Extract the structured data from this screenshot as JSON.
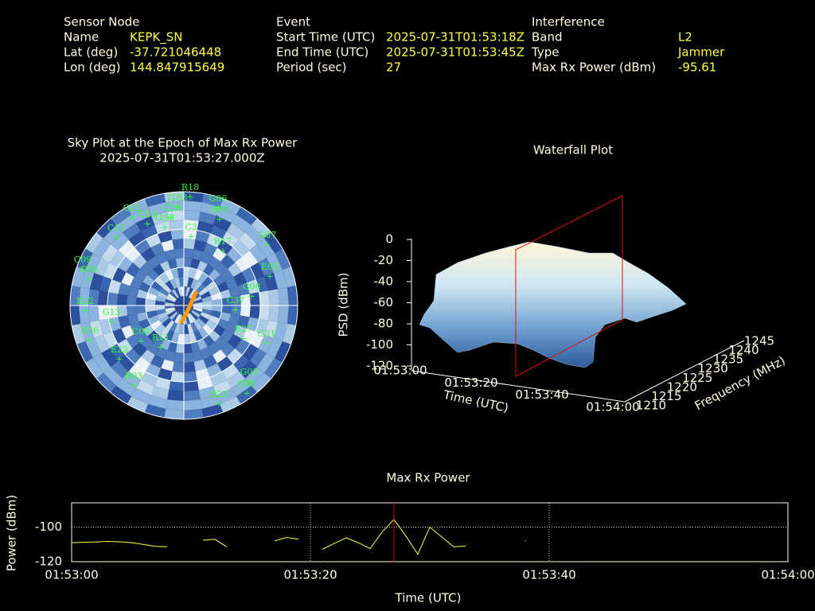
{
  "header": {
    "columns": [
      {
        "title": "Sensor Node",
        "rows": [
          {
            "label": "Name",
            "value": "KEPK_SN"
          },
          {
            "label": "Lat (deg)",
            "value": -37.721046448
          },
          {
            "label": "Lon (deg)",
            "value": 144.847915649
          }
        ]
      },
      {
        "title": "Event",
        "rows": [
          {
            "label": "Start Time (UTC)",
            "value": "2025-07-31T01:53:18Z"
          },
          {
            "label": "End Time (UTC)",
            "value": "2025-07-31T01:53:45Z"
          },
          {
            "label": "Period (sec)",
            "value": 27
          }
        ]
      },
      {
        "title": "Interference",
        "rows": [
          {
            "label": "Band",
            "value": "L2"
          },
          {
            "label": "Type",
            "value": "Jammer"
          },
          {
            "label": "Max Rx Power (dBm)",
            "value": -95.61
          }
        ]
      }
    ]
  },
  "sky_plot": {
    "title": "Sky Plot at the Epoch of Max Rx Power",
    "epoch": "2025-07-31T01:53:27.000Z",
    "satellites": [
      "R18",
      "I103",
      "G06",
      "G12",
      "C29",
      "H05",
      "C23",
      "I198",
      "G07",
      "C11",
      "C3",
      "R17",
      "E05",
      "C09",
      "C06",
      "G08",
      "E22",
      "G13",
      "C37",
      "R11",
      "E27",
      "G31",
      "R16",
      "C09",
      "E23",
      "R03",
      "G03",
      "E08",
      "R23"
    ]
  },
  "waterfall": {
    "title": "Waterfall Plot",
    "z_label": "PSD (dBm)",
    "x_label": "Time (UTC)",
    "y_label": "Frequency (MHz)",
    "zticks": [
      0,
      -20,
      -40,
      -60,
      -80,
      -100,
      -120
    ],
    "xticks": [
      "01:53:00",
      "01:53:20",
      "01:53:40",
      "01:54:00"
    ],
    "yticks": [
      1210,
      1215,
      1220,
      1225,
      1230,
      1235,
      1240,
      1245
    ]
  },
  "chart_data": {
    "type": "line",
    "title": "Max Rx Power",
    "x_label": "Time (UTC)",
    "y_label": "Power (dBm)",
    "x": [
      0,
      1,
      2,
      3,
      4,
      5,
      6,
      7,
      8,
      9,
      10,
      11,
      12,
      13,
      14,
      15,
      16,
      17,
      18,
      19,
      20,
      21,
      22,
      23,
      24,
      25,
      26,
      27,
      28,
      29,
      30,
      31,
      32,
      33,
      34,
      35,
      36,
      37,
      38
    ],
    "series": [
      {
        "name": "Max Rx Power",
        "color": "#ffff44",
        "values": [
          -109,
          -108.8,
          -108.6,
          -108.3,
          -108.5,
          -109,
          -110,
          -111.2,
          -111.4,
          null,
          null,
          -107.6,
          -107.1,
          -111.4,
          null,
          null,
          null,
          -108,
          -106,
          -107,
          null,
          -112.9,
          -109.5,
          -106.2,
          -109,
          -112.4,
          -102.9,
          -95.61,
          -105.2,
          -115.7,
          -100,
          -105.7,
          -111.4,
          -111,
          null,
          null,
          null,
          null,
          -108
        ]
      }
    ],
    "epoch_marker": 27,
    "marker_color": "#dd0000",
    "xlim": [
      0,
      60
    ],
    "xticks": [
      {
        "value": 0,
        "label": "01:53:00"
      },
      {
        "value": 20,
        "label": "01:53:20"
      },
      {
        "value": 40,
        "label": "01:53:40"
      },
      {
        "value": 60,
        "label": "01:54:00"
      }
    ],
    "ylim": [
      -120,
      -86
    ],
    "yticks": [
      -120,
      -100
    ],
    "grid": true
  }
}
